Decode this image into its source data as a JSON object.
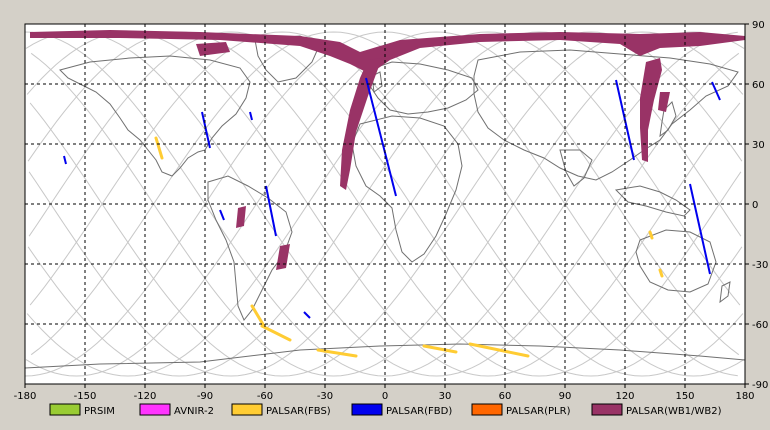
{
  "map": {
    "lon_ticks": [
      "-180",
      "-150",
      "-120",
      "-90",
      "-60",
      "-30",
      "0",
      "30",
      "60",
      "90",
      "120",
      "150",
      "180"
    ],
    "lat_ticks": [
      "90",
      "60",
      "30",
      "0",
      "-30",
      "-60",
      "-90"
    ],
    "lon_range": [
      -180,
      180
    ],
    "lat_range": [
      -90,
      90
    ],
    "grid": "dashed",
    "background": "#ffffff"
  },
  "legend": [
    {
      "label": "PRSIM",
      "color": "#99cc33"
    },
    {
      "label": "AVNIR-2",
      "color": "#ff33ff"
    },
    {
      "label": "PALSAR(FBS)",
      "color": "#ffcc33"
    },
    {
      "label": "PALSAR(FBD)",
      "color": "#0000ee"
    },
    {
      "label": "PALSAR(PLR)",
      "color": "#ff6600"
    },
    {
      "label": "PALSAR(WB1/WB2)",
      "color": "#993366"
    }
  ]
}
